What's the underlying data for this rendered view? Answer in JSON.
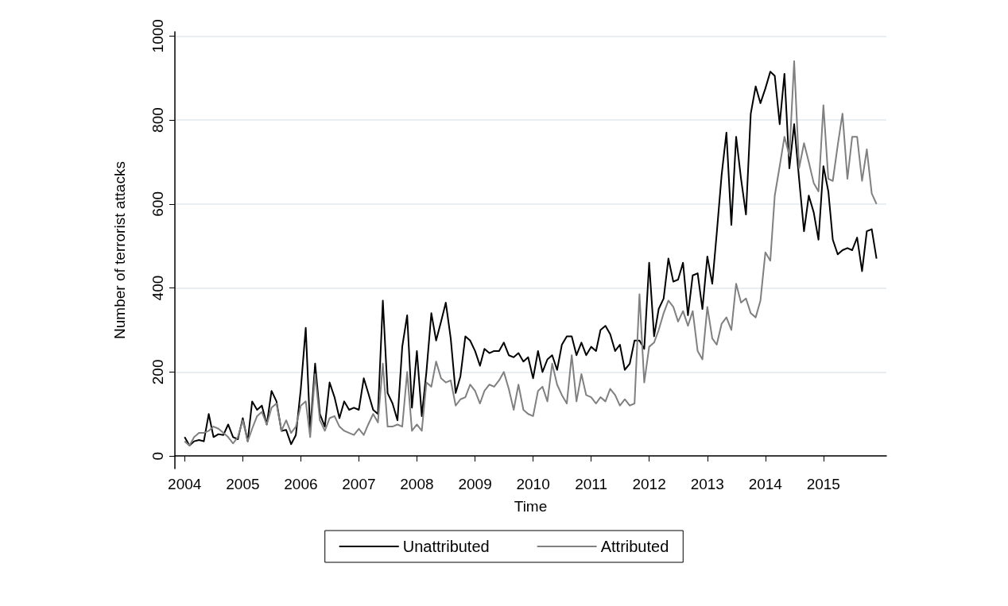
{
  "chart_data": {
    "type": "line",
    "xlabel": "Time",
    "ylabel": "Number of terrorist attacks",
    "x": [
      "2004-01",
      "2004-02",
      "2004-03",
      "2004-04",
      "2004-05",
      "2004-06",
      "2004-07",
      "2004-08",
      "2004-09",
      "2004-10",
      "2004-11",
      "2004-12",
      "2005-01",
      "2005-02",
      "2005-03",
      "2005-04",
      "2005-05",
      "2005-06",
      "2005-07",
      "2005-08",
      "2005-09",
      "2005-10",
      "2005-11",
      "2005-12",
      "2006-01",
      "2006-02",
      "2006-03",
      "2006-04",
      "2006-05",
      "2006-06",
      "2006-07",
      "2006-08",
      "2006-09",
      "2006-10",
      "2006-11",
      "2006-12",
      "2007-01",
      "2007-02",
      "2007-03",
      "2007-04",
      "2007-05",
      "2007-06",
      "2007-07",
      "2007-08",
      "2007-09",
      "2007-10",
      "2007-11",
      "2007-12",
      "2008-01",
      "2008-02",
      "2008-03",
      "2008-04",
      "2008-05",
      "2008-06",
      "2008-07",
      "2008-08",
      "2008-09",
      "2008-10",
      "2008-11",
      "2008-12",
      "2009-01",
      "2009-02",
      "2009-03",
      "2009-04",
      "2009-05",
      "2009-06",
      "2009-07",
      "2009-08",
      "2009-09",
      "2009-10",
      "2009-11",
      "2009-12",
      "2010-01",
      "2010-02",
      "2010-03",
      "2010-04",
      "2010-05",
      "2010-06",
      "2010-07",
      "2010-08",
      "2010-09",
      "2010-10",
      "2010-11",
      "2010-12",
      "2011-01",
      "2011-02",
      "2011-03",
      "2011-04",
      "2011-05",
      "2011-06",
      "2011-07",
      "2011-08",
      "2011-09",
      "2011-10",
      "2011-11",
      "2011-12",
      "2012-01",
      "2012-02",
      "2012-03",
      "2012-04",
      "2012-05",
      "2012-06",
      "2012-07",
      "2012-08",
      "2012-09",
      "2012-10",
      "2012-11",
      "2012-12",
      "2013-01",
      "2013-02",
      "2013-03",
      "2013-04",
      "2013-05",
      "2013-06",
      "2013-07",
      "2013-08",
      "2013-09",
      "2013-10",
      "2013-11",
      "2013-12",
      "2014-01",
      "2014-02",
      "2014-03",
      "2014-04",
      "2014-05",
      "2014-06",
      "2014-07",
      "2014-08",
      "2014-09",
      "2014-10",
      "2014-11",
      "2014-12",
      "2015-01",
      "2015-02",
      "2015-03",
      "2015-04",
      "2015-05",
      "2015-06",
      "2015-07",
      "2015-08",
      "2015-09",
      "2015-10",
      "2015-11",
      "2015-12"
    ],
    "series": [
      {
        "name": "Unattributed",
        "color": "#000000",
        "values": [
          45,
          25,
          35,
          38,
          35,
          100,
          45,
          52,
          50,
          75,
          45,
          40,
          90,
          35,
          130,
          110,
          120,
          75,
          155,
          130,
          60,
          62,
          28,
          50,
          160,
          305,
          60,
          220,
          100,
          70,
          175,
          140,
          90,
          130,
          110,
          115,
          110,
          185,
          150,
          110,
          100,
          370,
          150,
          125,
          85,
          260,
          335,
          115,
          250,
          95,
          200,
          340,
          275,
          320,
          365,
          280,
          150,
          190,
          285,
          275,
          250,
          215,
          255,
          245,
          250,
          250,
          270,
          240,
          235,
          245,
          225,
          235,
          185,
          250,
          200,
          230,
          240,
          205,
          265,
          285,
          285,
          240,
          270,
          240,
          260,
          250,
          300,
          310,
          290,
          250,
          265,
          205,
          220,
          275,
          275,
          255,
          460,
          285,
          350,
          375,
          470,
          415,
          420,
          460,
          335,
          430,
          435,
          350,
          475,
          410,
          530,
          670,
          770,
          550,
          760,
          660,
          575,
          815,
          880,
          840,
          875,
          915,
          905,
          790,
          910,
          685,
          790,
          660,
          535,
          620,
          580,
          515,
          690,
          630,
          515,
          480,
          490,
          495,
          490,
          520,
          440,
          535,
          540,
          470
        ]
      },
      {
        "name": "Attributed",
        "color": "#808080",
        "values": [
          35,
          25,
          45,
          55,
          55,
          60,
          70,
          65,
          55,
          45,
          30,
          45,
          85,
          35,
          65,
          95,
          105,
          75,
          115,
          125,
          60,
          85,
          55,
          70,
          120,
          130,
          45,
          195,
          85,
          60,
          90,
          95,
          70,
          60,
          55,
          50,
          65,
          50,
          75,
          100,
          80,
          220,
          70,
          70,
          75,
          70,
          200,
          60,
          75,
          60,
          175,
          165,
          225,
          185,
          175,
          180,
          120,
          135,
          140,
          170,
          155,
          125,
          155,
          170,
          165,
          180,
          200,
          160,
          110,
          170,
          110,
          100,
          95,
          155,
          165,
          130,
          220,
          170,
          145,
          125,
          240,
          130,
          195,
          145,
          140,
          125,
          140,
          130,
          160,
          145,
          120,
          135,
          120,
          125,
          385,
          175,
          260,
          270,
          300,
          340,
          370,
          355,
          320,
          345,
          310,
          345,
          250,
          230,
          355,
          280,
          265,
          315,
          330,
          300,
          410,
          365,
          375,
          340,
          330,
          370,
          485,
          465,
          620,
          690,
          760,
          715,
          940,
          685,
          745,
          700,
          650,
          630,
          835,
          660,
          655,
          740,
          815,
          660,
          760,
          760,
          655,
          730,
          625,
          600
        ]
      }
    ],
    "xlim": [
      "2003-11",
      "2016-02"
    ],
    "xticks": [
      "2004",
      "2005",
      "2006",
      "2007",
      "2008",
      "2009",
      "2010",
      "2011",
      "2012",
      "2013",
      "2014",
      "2015"
    ],
    "ylim": [
      -30,
      1010
    ],
    "yticks": [
      0,
      200,
      400,
      600,
      800,
      1000
    ],
    "grid": "y",
    "legend": "bottom",
    "marker": "none"
  }
}
